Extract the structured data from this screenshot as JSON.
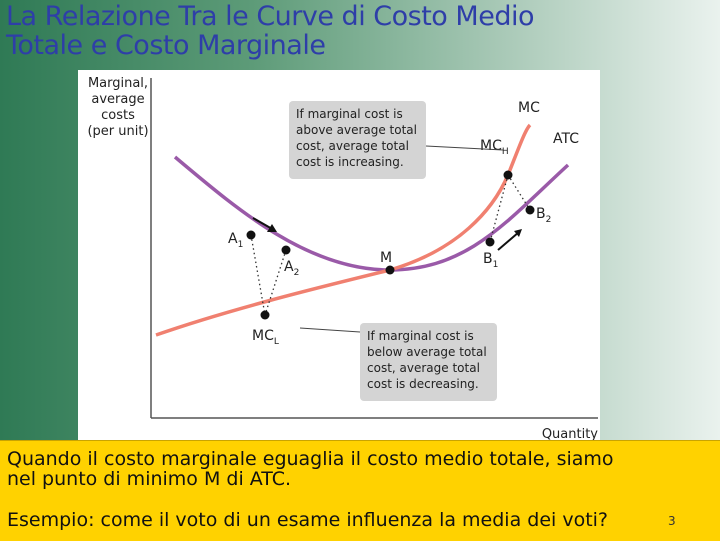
{
  "slide": {
    "title_line1": "La Relazione Tra le Curve di Costo Medio",
    "title_line2": "Totale e Costo Marginale",
    "caption_line1": "Quando il costo marginale eguaglia il costo medio totale, siamo",
    "caption_line2": "nel punto di minimo M di ATC.",
    "caption_line3": "Esempio: come il voto di un esame influenza la media dei voti?",
    "page_number": "3"
  },
  "diagram": {
    "y_axis_label": [
      "Marginal,",
      "average",
      "costs",
      "(per unit)"
    ],
    "x_axis_label": "Quantity",
    "curves": {
      "mc": "MC",
      "atc": "ATC"
    },
    "points": {
      "a1": "A",
      "a1_sub": "1",
      "a2": "A",
      "a2_sub": "2",
      "m": "M",
      "b1": "B",
      "b1_sub": "1",
      "b2": "B",
      "b2_sub": "2",
      "mch": "MC",
      "mch_sub": "H",
      "mcl": "MC",
      "mcl_sub": "L"
    },
    "note_above": [
      "If marginal cost is",
      "above average total",
      "cost, average total",
      "cost is increasing."
    ],
    "note_below": [
      "If marginal cost is",
      "below average total",
      "cost, average total",
      "cost is decreasing."
    ],
    "colors": {
      "mc": "#f08070",
      "atc": "#9a5aa8",
      "note_box": "#d4d4d4",
      "axis": "#555555"
    }
  }
}
